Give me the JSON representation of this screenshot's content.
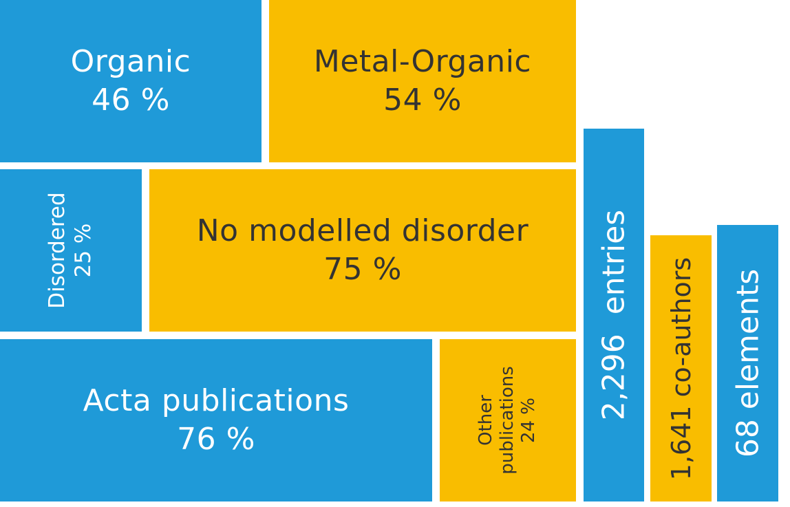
{
  "blocks": {
    "organic": {
      "label": "Organic",
      "value": "46 %"
    },
    "metal_organic": {
      "label": "Metal-Organic",
      "value": "54 %"
    },
    "disordered": {
      "label": "Disordered",
      "value": "25 %"
    },
    "no_disorder": {
      "label": "No modelled disorder",
      "value": "75 %"
    },
    "acta": {
      "label": "Acta publications",
      "value": "76 %"
    },
    "other": {
      "label_line1": "Other",
      "label_line2": "publications",
      "value": "24 %"
    }
  },
  "stats": {
    "entries": "2,296  entries",
    "coauthors": "1,641 co-authors",
    "elements": "68 elements"
  },
  "colors": {
    "blue": "#1f9ad8",
    "yellow": "#f9bd00",
    "dark_text": "#333333",
    "light_text": "#ffffff"
  }
}
